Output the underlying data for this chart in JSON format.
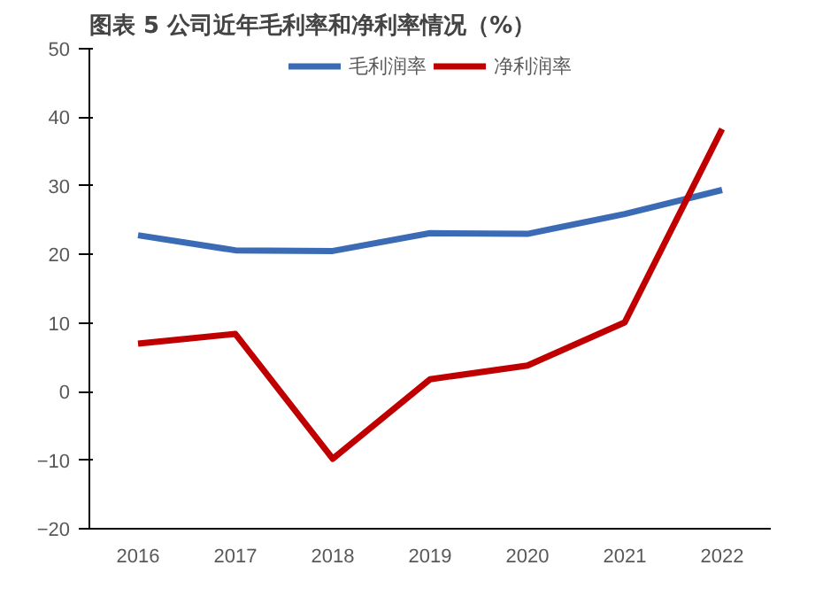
{
  "chart_data": {
    "type": "line",
    "title": "图表 5 公司近年毛利率和净利率情况（%）",
    "categories": [
      "2016",
      "2017",
      "2018",
      "2019",
      "2020",
      "2021",
      "2022"
    ],
    "series": [
      {
        "name": "毛利润率",
        "color": "#3c6bb5",
        "values": [
          22.8,
          20.6,
          20.5,
          23.1,
          23.0,
          25.9,
          29.4
        ]
      },
      {
        "name": "净利润率",
        "color": "#c00000",
        "values": [
          7.0,
          8.4,
          -9.8,
          1.8,
          3.8,
          10.1,
          38.3
        ]
      }
    ],
    "ylim": [
      -20,
      50
    ],
    "yticks": [
      -20,
      -10,
      0,
      10,
      20,
      30,
      40,
      50
    ],
    "grid": false,
    "legend": "top",
    "marker": "none",
    "line_style": "solid"
  }
}
